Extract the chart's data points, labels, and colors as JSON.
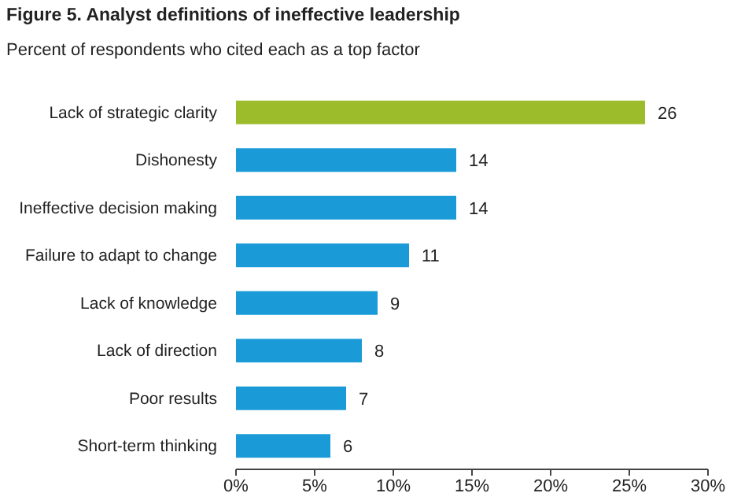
{
  "chart_data": {
    "type": "bar",
    "orientation": "horizontal",
    "title": "Figure 5. Analyst definitions of ineffective leadership",
    "subtitle": "Percent of respondents who cited each as a top factor",
    "categories": [
      "Lack of strategic clarity",
      "Dishonesty",
      "Ineffective decision making",
      "Failure to adapt to change",
      "Lack of knowledge",
      "Lack of direction",
      "Poor results",
      "Short-term thinking"
    ],
    "values": [
      26,
      14,
      14,
      11,
      9,
      8,
      7,
      6
    ],
    "colors": [
      "#9cbc2c",
      "#1a9bd7",
      "#1a9bd7",
      "#1a9bd7",
      "#1a9bd7",
      "#1a9bd7",
      "#1a9bd7",
      "#1a9bd7"
    ],
    "xlim": [
      0,
      30
    ],
    "xticks": [
      {
        "value": 0,
        "label": "0%"
      },
      {
        "value": 5,
        "label": "5%"
      },
      {
        "value": 10,
        "label": "10%"
      },
      {
        "value": 15,
        "label": "15%"
      },
      {
        "value": 20,
        "label": "20%"
      },
      {
        "value": 25,
        "label": "25%"
      },
      {
        "value": 30,
        "label": "30%"
      }
    ],
    "data_labels": true,
    "grid": false
  }
}
